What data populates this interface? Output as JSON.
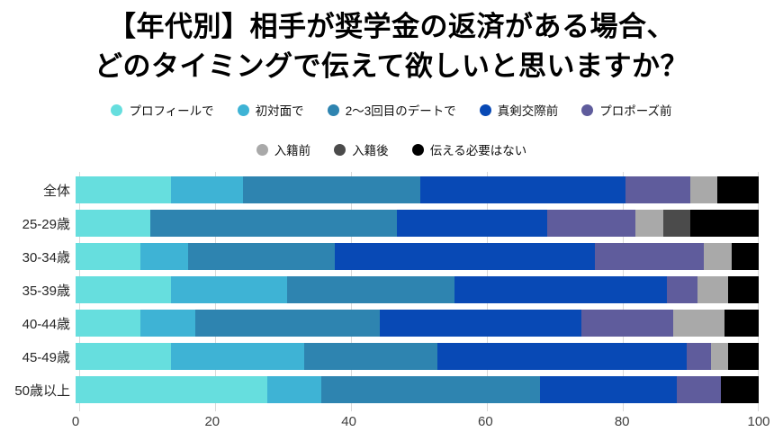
{
  "title": {
    "line1": "【年代別】相手が奨学金の返済がある場合、",
    "line2": "どのタイミングで伝えて欲しいと思いますか？",
    "color": "#000000"
  },
  "chart_data": {
    "type": "bar",
    "variant": "horizontal-stacked",
    "unit": "percent",
    "categories": [
      "全体",
      "25-29歳",
      "30-34歳",
      "35-39歳",
      "40-44歳",
      "45-49歳",
      "50歳以上"
    ],
    "series": [
      {
        "name": "プロフィールで",
        "color": "#66dede",
        "values": [
          14.0,
          11.0,
          9.5,
          14.0,
          9.5,
          14.0,
          28.0
        ]
      },
      {
        "name": "初対面で",
        "color": "#3eb3d5",
        "values": [
          10.5,
          0.0,
          7.0,
          17.0,
          8.0,
          19.5,
          8.0
        ]
      },
      {
        "name": "2〜3回目のデートで",
        "color": "#2e84b0",
        "values": [
          26.0,
          36.0,
          21.5,
          24.5,
          27.0,
          19.5,
          32.0
        ]
      },
      {
        "name": "真剣交際前",
        "color": "#0849b5",
        "values": [
          30.0,
          22.0,
          38.0,
          31.0,
          29.5,
          36.5,
          20.0
        ]
      },
      {
        "name": "プロポーズ前",
        "color": "#5f5c9c",
        "values": [
          9.5,
          13.0,
          16.0,
          4.5,
          13.5,
          3.5,
          6.5
        ]
      },
      {
        "name": "入籍前",
        "color": "#a9a9a9",
        "values": [
          4.0,
          4.0,
          4.0,
          4.5,
          7.5,
          2.5,
          0.0
        ]
      },
      {
        "name": "入籍後",
        "color": "#4b4b4b",
        "values": [
          0.0,
          4.0,
          0.0,
          0.0,
          0.0,
          0.0,
          0.0
        ]
      },
      {
        "name": "伝える必要はない",
        "color": "#000000",
        "values": [
          6.0,
          10.0,
          4.0,
          4.5,
          5.0,
          4.5,
          5.5
        ]
      }
    ],
    "legend_rows": [
      [
        0,
        1,
        2,
        3,
        4
      ],
      [
        5,
        6,
        7
      ]
    ],
    "x_axis": {
      "min": 0,
      "max": 100,
      "ticks": [
        0,
        20,
        40,
        60,
        80,
        100
      ]
    },
    "grid": true,
    "gridline_color": "#d9d9d9",
    "background": "#ffffff"
  }
}
